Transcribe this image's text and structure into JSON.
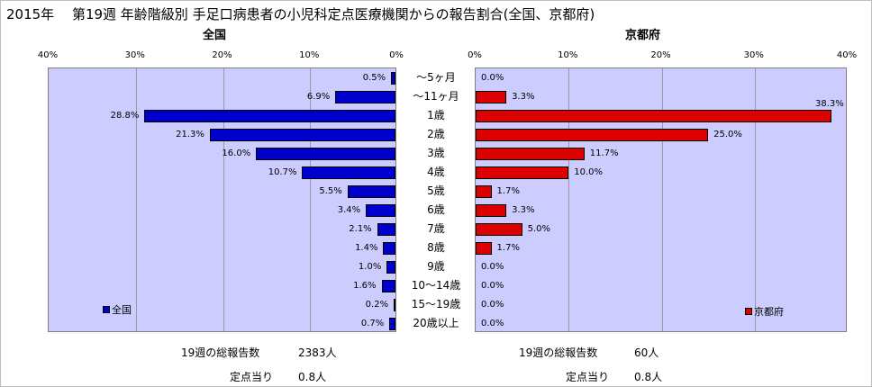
{
  "title": "2015年　 第19週 年齢階級別 手足口病患者の小児科定点医療機関からの報告割合(全国、京都府)",
  "chart_data": {
    "type": "bar",
    "categories": [
      "～5ヶ月",
      "～11ヶ月",
      "1歳",
      "2歳",
      "3歳",
      "4歳",
      "5歳",
      "6歳",
      "7歳",
      "8歳",
      "9歳",
      "10～14歳",
      "15～19歳",
      "20歳以上"
    ],
    "panels": [
      {
        "subtitle": "全国",
        "legend": "全国",
        "color": "#0000cc",
        "direction": "left",
        "xlim": [
          0,
          40
        ],
        "ticks": [
          "40%",
          "30%",
          "20%",
          "10%",
          "0%"
        ],
        "values": [
          0.5,
          6.9,
          28.8,
          21.3,
          16.0,
          10.7,
          5.5,
          3.4,
          2.1,
          1.4,
          1.0,
          1.6,
          0.2,
          0.7
        ],
        "labels": [
          "0.5%",
          "6.9%",
          "28.8%",
          "21.3%",
          "16.0%",
          "10.7%",
          "5.5%",
          "3.4%",
          "2.1%",
          "1.4%",
          "1.0%",
          "1.6%",
          "0.2%",
          "0.7%"
        ]
      },
      {
        "subtitle": "京都府",
        "legend": "京都府",
        "color": "#dd0000",
        "direction": "right",
        "xlim": [
          0,
          40
        ],
        "ticks": [
          "0%",
          "10%",
          "20%",
          "30%",
          "40%"
        ],
        "values": [
          0.0,
          3.3,
          38.3,
          25.0,
          11.7,
          10.0,
          1.7,
          3.3,
          5.0,
          1.7,
          0.0,
          0.0,
          0.0,
          0.0
        ],
        "labels": [
          "0.0%",
          "3.3%",
          "38.3%",
          "25.0%",
          "11.7%",
          "10.0%",
          "1.7%",
          "3.3%",
          "5.0%",
          "1.7%",
          "0.0%",
          "0.0%",
          "0.0%",
          "0.0%"
        ]
      }
    ]
  },
  "footer": {
    "left": {
      "total_label": "19週の総報告数",
      "total_value": "2383人",
      "per_label": "定点当り",
      "per_value": "0.8人"
    },
    "right": {
      "total_label": "19週の総報告数",
      "total_value": "60人",
      "per_label": "定点当り",
      "per_value": "0.8人"
    }
  }
}
